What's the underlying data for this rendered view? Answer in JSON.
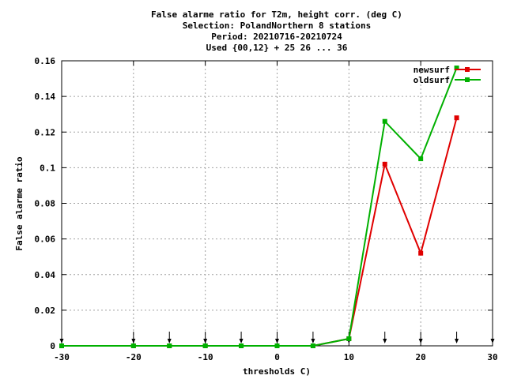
{
  "chart_data": {
    "type": "line",
    "title_lines": [
      "False alarme ratio  for T2m, height corr. (deg C)",
      "Selection: PolandNorthern      8 stations",
      "Period: 20210716-20210724",
      "Used {00,12} + 25 26 ... 36"
    ],
    "xlabel": "thresholds C)",
    "ylabel": "False alarme ratio",
    "xlim": [
      -30,
      30
    ],
    "ylim": [
      0,
      0.16
    ],
    "xticks": [
      -30,
      -20,
      -10,
      0,
      10,
      20,
      30
    ],
    "xtick_labels": [
      "-30",
      "-20",
      "-10",
      "0",
      "10",
      "20",
      "30"
    ],
    "yticks": [
      0,
      0.02,
      0.04,
      0.06,
      0.08,
      0.1,
      0.12,
      0.14,
      0.16
    ],
    "ytick_labels": [
      "0",
      "0.02",
      "0.04",
      "0.06",
      "0.08",
      "0.1",
      "0.12",
      "0.14",
      "0.16"
    ],
    "grid": true,
    "legend_position": "top-right",
    "arrow_markers_x": [
      -30,
      -20,
      -15,
      -10,
      -5,
      0,
      5,
      10,
      15,
      20,
      25,
      30
    ],
    "series": [
      {
        "name": "newsurf",
        "color": "#e00000",
        "x": [
          -30,
          -20,
          -15,
          -10,
          -5,
          0,
          5,
          10,
          15,
          20,
          25
        ],
        "y": [
          0,
          0,
          0,
          0,
          0,
          0,
          0,
          0.004,
          0.102,
          0.052,
          0.128
        ]
      },
      {
        "name": "oldsurf",
        "color": "#00b000",
        "x": [
          -30,
          -20,
          -15,
          -10,
          -5,
          0,
          5,
          10,
          15,
          20,
          25
        ],
        "y": [
          0,
          0,
          0,
          0,
          0,
          0,
          0,
          0.004,
          0.126,
          0.105,
          0.156
        ]
      }
    ]
  }
}
